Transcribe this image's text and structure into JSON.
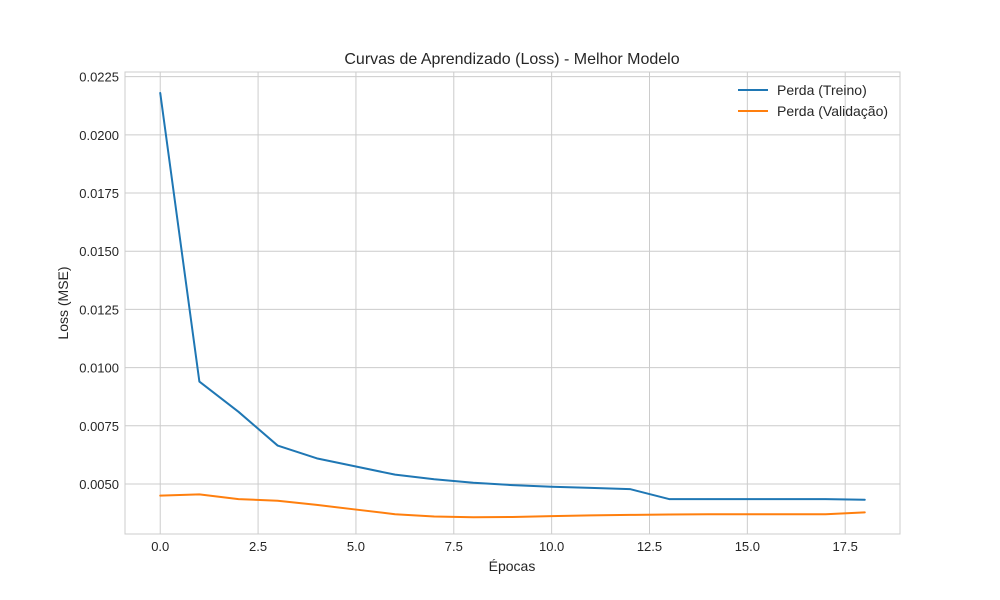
{
  "chart_data": {
    "type": "line",
    "title": "Curvas de Aprendizado (Loss) - Melhor Modelo",
    "xlabel": "Épocas",
    "ylabel": "Loss (MSE)",
    "xlim": [
      -0.9,
      18.9
    ],
    "ylim": [
      0.00285,
      0.0227
    ],
    "xticks": [
      0.0,
      2.5,
      5.0,
      7.5,
      10.0,
      12.5,
      15.0,
      17.5
    ],
    "xtick_labels": [
      "0.0",
      "2.5",
      "5.0",
      "7.5",
      "10.0",
      "12.5",
      "15.0",
      "17.5"
    ],
    "yticks": [
      0.005,
      0.0075,
      0.01,
      0.0125,
      0.015,
      0.0175,
      0.02,
      0.0225
    ],
    "ytick_labels": [
      "0.0050",
      "0.0075",
      "0.0100",
      "0.0125",
      "0.0150",
      "0.0175",
      "0.0200",
      "0.0225"
    ],
    "grid": true,
    "legend_position": "top-right",
    "x": [
      0,
      1,
      2,
      3,
      4,
      5,
      6,
      7,
      8,
      9,
      10,
      11,
      12,
      13,
      14,
      15,
      16,
      17,
      18
    ],
    "series": [
      {
        "name": "Perda (Treino)",
        "color": "#1f77b4",
        "values": [
          0.0218,
          0.0094,
          0.0081,
          0.00665,
          0.0061,
          0.00575,
          0.0054,
          0.0052,
          0.00505,
          0.00495,
          0.00488,
          0.00483,
          0.00478,
          0.00435,
          0.00435,
          0.00435,
          0.00435,
          0.00435,
          0.00432
        ]
      },
      {
        "name": "Perda (Validação)",
        "color": "#ff7f0e",
        "values": [
          0.0045,
          0.00455,
          0.00435,
          0.00428,
          0.0041,
          0.0039,
          0.0037,
          0.0036,
          0.00357,
          0.00358,
          0.00362,
          0.00365,
          0.00367,
          0.00369,
          0.0037,
          0.0037,
          0.0037,
          0.0037,
          0.00378
        ]
      }
    ]
  }
}
